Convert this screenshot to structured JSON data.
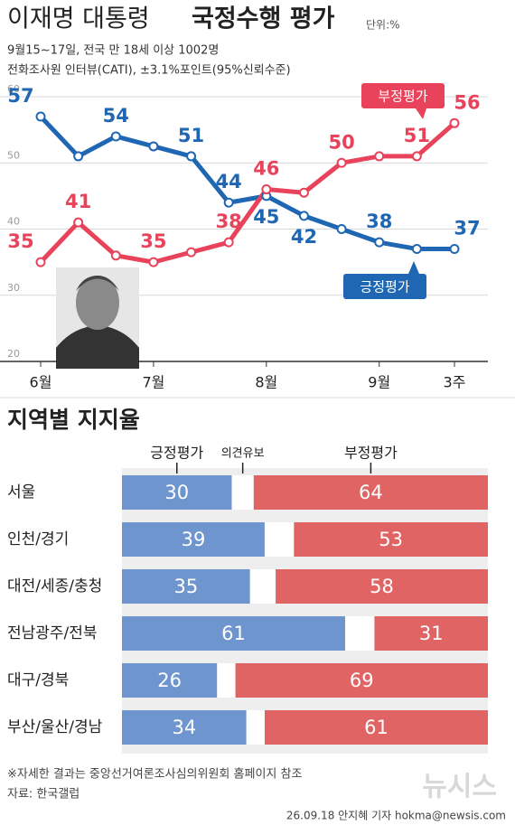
{
  "header": {
    "title_light": "이재명 대통령",
    "title_bold": "국정수행 평가",
    "unit": "단위:%",
    "subtitle_1": "9월15~17일, 전국 만 18세 이상 1002명",
    "subtitle_2": "전화조사원 인터뷰(CATI), ±3.1%포인트(95%신뢰수준)"
  },
  "chart_data": [
    {
      "type": "line",
      "categories": [
        "6월",
        null,
        null,
        "7월",
        null,
        null,
        "8월",
        null,
        null,
        "9월",
        null,
        "3주"
      ],
      "series": [
        {
          "name": "긍정평가",
          "color": "#1f66b3",
          "values": [
            57,
            51,
            54,
            52.5,
            51,
            44,
            45,
            42,
            40,
            38,
            37,
            37
          ],
          "value_labels": [
            57,
            null,
            54,
            null,
            51,
            44,
            45,
            42,
            null,
            38,
            null,
            37
          ]
        },
        {
          "name": "부정평가",
          "color": "#e8435a",
          "values": [
            35,
            41,
            36,
            35,
            36.5,
            38,
            46,
            45.5,
            50,
            51,
            51,
            56
          ],
          "value_labels": [
            35,
            41,
            null,
            35,
            null,
            38,
            46,
            null,
            50,
            null,
            51,
            56
          ]
        }
      ],
      "ylim": [
        20,
        60
      ],
      "yticks": [
        20,
        30,
        40,
        50,
        60
      ],
      "grid": true
    },
    {
      "type": "stacked-bar-horizontal",
      "title": "지역별 지지율",
      "categories": [
        "서울",
        "인천/경기",
        "대전/세종/충청",
        "전남광주/전북",
        "대구/경북",
        "부산/울산/경남"
      ],
      "series": [
        {
          "name": "긍정평가",
          "color": "#6e95cd",
          "values": [
            30,
            39,
            35,
            61,
            26,
            34
          ]
        },
        {
          "name": "의견유보",
          "color": "#ffffff",
          "values": [
            6,
            8,
            7,
            8,
            5,
            5
          ]
        },
        {
          "name": "부정평가",
          "color": "#e06464",
          "values": [
            64,
            53,
            58,
            31,
            69,
            61
          ]
        }
      ],
      "xlim": [
        0,
        100
      ],
      "labeled_series": [
        0,
        2
      ]
    }
  ],
  "footer": {
    "note": "※자세한 결과는 중앙선거여론조사심의위원회 홈페이지 참조",
    "source": "자료: 한국갤럽",
    "credit": "26.09.18 안지혜 기자 hokma@newsis.com",
    "logo": "뉴시스"
  }
}
